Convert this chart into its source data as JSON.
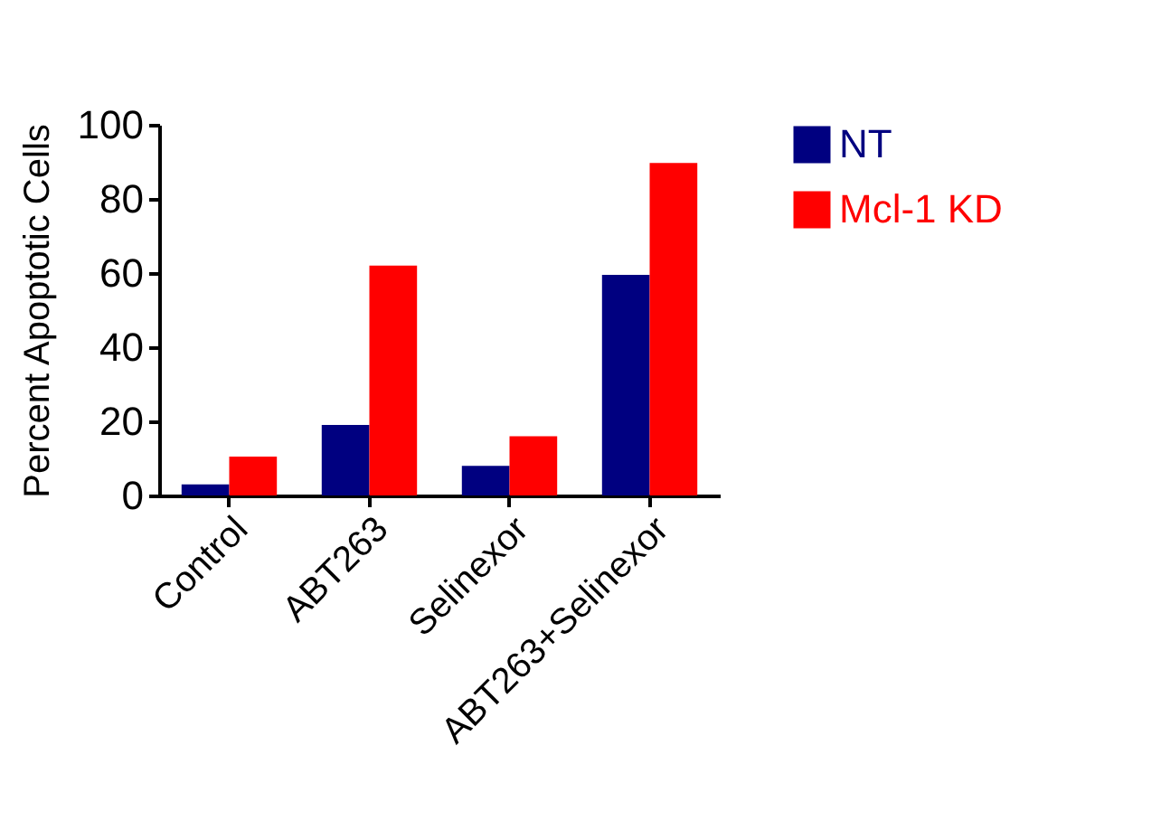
{
  "chart_data": {
    "type": "bar",
    "ylabel": "Percent Apoptotic Cells",
    "categories": [
      "Control",
      "ABT263",
      "Selinexor",
      "ABT263+Selinexor"
    ],
    "series": [
      {
        "name": "NT",
        "color": "#000080",
        "values": [
          3,
          19,
          8,
          59.5
        ]
      },
      {
        "name": "Mcl-1 KD",
        "color": "#ff0000",
        "values": [
          10.5,
          62,
          16,
          89.7
        ]
      }
    ],
    "ylim": [
      0,
      100
    ],
    "yticks": [
      0,
      20,
      40,
      60,
      80,
      100
    ],
    "grid": false,
    "legend": "top right"
  }
}
